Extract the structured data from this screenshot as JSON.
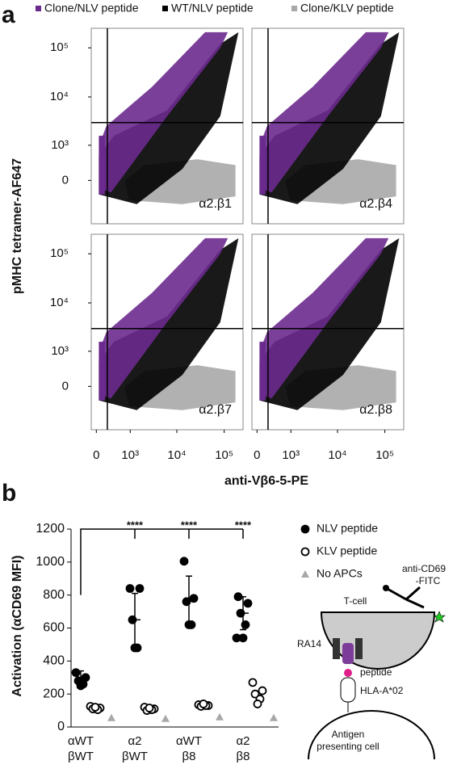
{
  "chart_data": [
    {
      "type": "flow",
      "panel_label": "a",
      "y_label": "pMHC tetramer-AF647",
      "x_label": "anti-Vβ6-5-PE",
      "series": [
        {
          "name": "Clone/NLV peptide",
          "color": "#6b2a8e"
        },
        {
          "name": "WT/NLV peptide",
          "color": "#000000"
        },
        {
          "name": "Clone/KLV peptide",
          "color": "#a8a8a8"
        }
      ],
      "panels": [
        "α2.β1",
        "α2.β4",
        "α2.β7",
        "α2.β8"
      ],
      "xlim": [
        -100,
        250000
      ],
      "ylim": [
        -1500,
        250000
      ],
      "xticks": [
        0,
        {
          "value": 1000,
          "label": "10³"
        },
        {
          "value": 10000,
          "label": "10⁴"
        },
        {
          "value": 100000,
          "label": "10⁵"
        }
      ],
      "yticks": [
        0,
        {
          "value": 1000,
          "label": "10³"
        },
        {
          "value": 10000,
          "label": "10⁴"
        },
        {
          "value": 100000,
          "label": "10⁵"
        }
      ],
      "quadrant_gate": [
        225,
        3000
      ]
    },
    {
      "type": "dot",
      "panel_label": "b",
      "y_label": "Activation (αCD69 MFI)",
      "categories": [
        [
          "αWT",
          "βWT"
        ],
        [
          "α2",
          "βWT"
        ],
        [
          "αWT",
          "β8"
        ],
        [
          "α2",
          "β8"
        ]
      ],
      "ylim": [
        0,
        1200
      ],
      "yticks": [
        0,
        200,
        400,
        600,
        800,
        1000,
        1200
      ],
      "series": [
        {
          "name": "NLV peptide",
          "color": "#000000",
          "marker": "filled-circle",
          "values": [
            [
              330,
              300,
              280,
              260,
              250
            ],
            [
              840,
              840,
              650,
              480,
              480
            ],
            [
              1005,
              780,
              760,
              620,
              620
            ],
            [
              790,
              750,
              690,
              620,
              540,
              540
            ]
          ],
          "means": [
            290,
            650,
            770,
            690
          ],
          "errors": [
            50,
            160,
            145,
            100
          ]
        },
        {
          "name": "KLV peptide",
          "color": "#000000",
          "marker": "open-circle",
          "values": [
            [
              125,
              115,
              110,
              105,
              120
            ],
            [
              120,
              110,
              100,
              105,
              115
            ],
            [
              135,
              130,
              125,
              130,
              140
            ],
            [
              270,
              220,
              200,
              170,
              140
            ]
          ]
        },
        {
          "name": "No APCs",
          "color": "#a8a8a8",
          "marker": "triangle",
          "values": [
            [
              55
            ],
            [
              50
            ],
            [
              60
            ],
            [
              55
            ]
          ]
        }
      ],
      "significance": [
        "****",
        "****",
        "****"
      ]
    }
  ],
  "diagram": {
    "t_cell": "T-cell",
    "antibody": [
      "anti-CD69",
      "-FITC"
    ],
    "tcr": "RA14",
    "peptide": "peptide",
    "mhc": "HLA-A*02",
    "apc": [
      "Antigen",
      "presenting cell"
    ]
  }
}
